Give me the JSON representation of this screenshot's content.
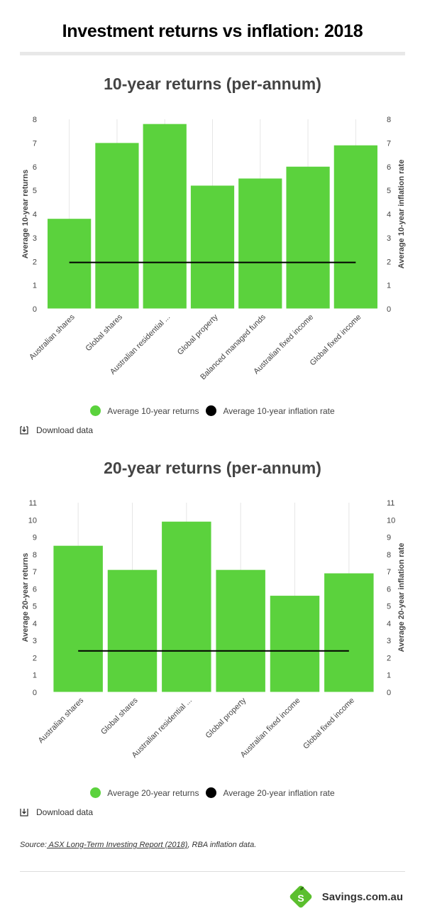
{
  "page": {
    "title": "Investment returns vs inflation: 2018"
  },
  "charts": [
    {
      "title": "10-year returns (per-annum)",
      "download_label": "Download data"
    },
    {
      "title": "20-year returns (per-annum)",
      "download_label": "Download data"
    }
  ],
  "chart_data": [
    {
      "type": "bar",
      "title": "10-year returns (per-annum)",
      "categories": [
        "Australian shares",
        "Global shares",
        "Australian residential ...",
        "Global property",
        "Balanced managed funds",
        "Australian fixed income",
        "Global fixed income"
      ],
      "series": [
        {
          "name": "Average 10-year returns",
          "type": "bar",
          "values": [
            3.8,
            7.0,
            7.8,
            5.2,
            5.5,
            6.0,
            6.9
          ],
          "color": "#5bd23d"
        },
        {
          "name": "Average 10-year inflation rate",
          "type": "line",
          "values": [
            1.96,
            1.96,
            1.96,
            1.96,
            1.96,
            1.96,
            1.96
          ],
          "color": "#000000"
        }
      ],
      "ylabel_left": "Average 10-year returns",
      "ylabel_right": "Average 10-year inflation rate",
      "ylim": [
        0,
        8
      ],
      "yticks": [
        0,
        1,
        2,
        3,
        4,
        5,
        6,
        7,
        8
      ],
      "grid": true,
      "legend": "bottom"
    },
    {
      "type": "bar",
      "title": "20-year returns (per-annum)",
      "categories": [
        "Australian shares",
        "Global shares",
        "Australian residential ...",
        "Global property",
        "Australian fixed income",
        "Global fixed income"
      ],
      "series": [
        {
          "name": "Average 20-year returns",
          "type": "bar",
          "values": [
            8.5,
            7.1,
            9.9,
            7.1,
            5.6,
            6.9
          ],
          "color": "#5bd23d"
        },
        {
          "name": "Average 20-year inflation rate",
          "type": "line",
          "values": [
            2.4,
            2.4,
            2.4,
            2.4,
            2.4,
            2.4
          ],
          "color": "#000000"
        }
      ],
      "ylabel_left": "Average 20-year returns",
      "ylabel_right": "Average 20-year inflation rate",
      "ylim": [
        0,
        11
      ],
      "yticks": [
        0,
        1,
        2,
        3,
        4,
        5,
        6,
        7,
        8,
        9,
        10,
        11
      ],
      "grid": true,
      "legend": "bottom"
    }
  ],
  "source": {
    "prefix": "Source:",
    "link_text": " ASX Long-Term Investing Report (2018)",
    "suffix": ", RBA inflation data."
  },
  "brand": {
    "name": "Savings.com.au",
    "logo_letter": "S",
    "color": "#5bbf2e"
  },
  "icons": {
    "download": "download-icon",
    "logo": "savings-logo-icon"
  }
}
